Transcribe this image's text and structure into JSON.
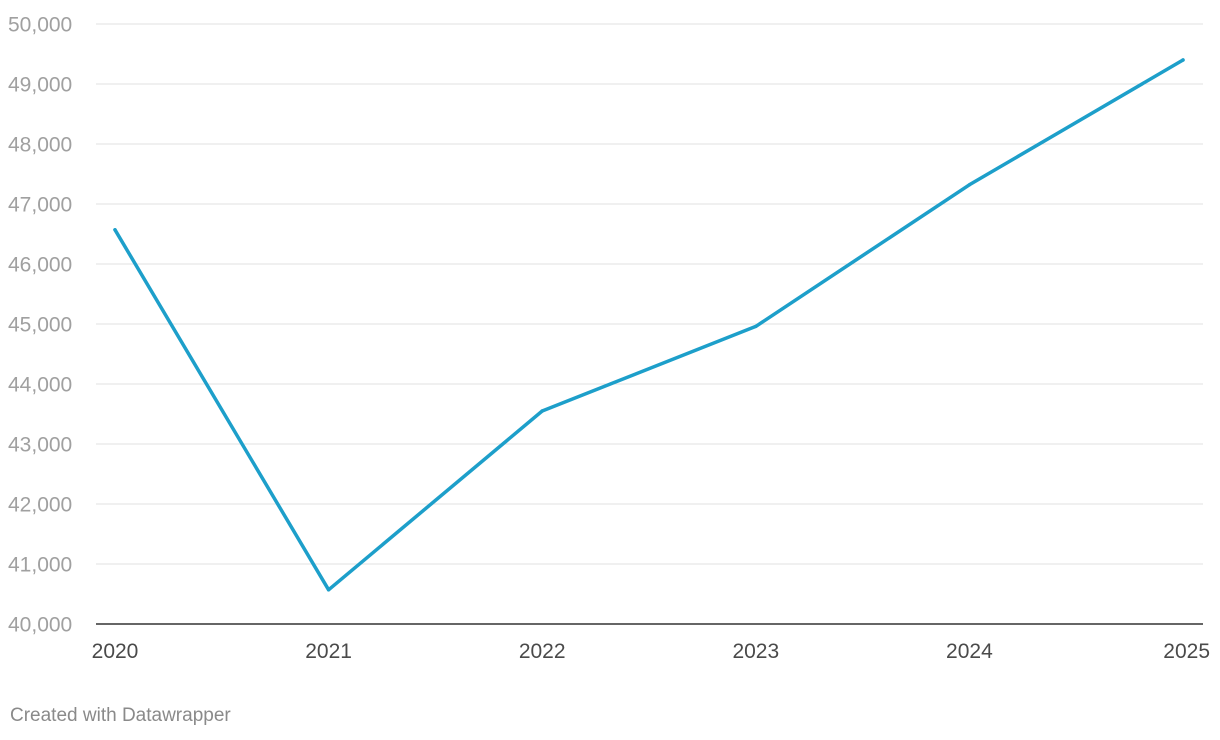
{
  "chart_data": {
    "type": "line",
    "title": "",
    "xlabel": "",
    "ylabel": "",
    "x": [
      "2020",
      "2021",
      "2022",
      "2023",
      "2024",
      "2025"
    ],
    "series": [
      {
        "values": [
          46570,
          40570,
          43550,
          44960,
          47320,
          49400
        ],
        "color": "#1d9fca"
      }
    ],
    "ylim": [
      40000,
      50000
    ],
    "yticks": [
      40000,
      41000,
      42000,
      43000,
      44000,
      45000,
      46000,
      47000,
      48000,
      49000,
      50000
    ],
    "ytick_labels": [
      "40,000",
      "41,000",
      "42,000",
      "43,000",
      "44,000",
      "45,000",
      "46,000",
      "47,000",
      "48,000",
      "49,000",
      "50,000"
    ],
    "grid": true,
    "legend": "none"
  },
  "footer": {
    "credit": "Created with Datawrapper"
  }
}
